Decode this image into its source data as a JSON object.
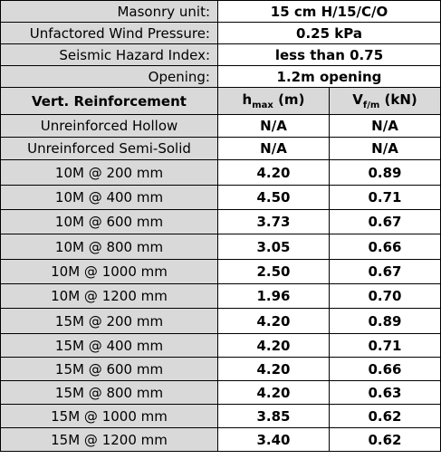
{
  "info_rows": [
    {
      "label": "Masonry unit:",
      "value": "15 cm H/15/C/O"
    },
    {
      "label": "Unfactored Wind Pressure:",
      "value": "0.25 kPa"
    },
    {
      "label": "Seismic Hazard Index:",
      "value": "less than 0.75"
    },
    {
      "label": "Opening:",
      "value": "1.2m opening"
    }
  ],
  "header": {
    "col1": "Vert. Reinforcement",
    "col2_main": "h",
    "col2_sub": "max",
    "col2_unit": " (m)",
    "col3_main": "V",
    "col3_sub": "f/m",
    "col3_unit": " (kN)"
  },
  "unreinforced_rows": [
    {
      "label": "Unreinforced Hollow",
      "hmax": "N/A",
      "vfm": "N/A"
    },
    {
      "label": "Unreinforced Semi-Solid",
      "hmax": "N/A",
      "vfm": "N/A"
    }
  ],
  "group_10m": [
    {
      "label": "10M @ 200 mm",
      "hmax": "4.20",
      "vfm": "0.89"
    },
    {
      "label": "10M @ 400 mm",
      "hmax": "4.50",
      "vfm": "0.71"
    },
    {
      "label": "10M @ 600 mm",
      "hmax": "3.73",
      "vfm": "0.67"
    },
    {
      "label": "10M @ 800 mm",
      "hmax": "3.05",
      "vfm": "0.66"
    },
    {
      "label": "10M @ 1000 mm",
      "hmax": "2.50",
      "vfm": "0.67"
    },
    {
      "label": "10M @ 1200 mm",
      "hmax": "1.96",
      "vfm": "0.70"
    }
  ],
  "group_15m": [
    {
      "label": "15M @ 200 mm",
      "hmax": "4.20",
      "vfm": "0.89"
    },
    {
      "label": "15M @ 400 mm",
      "hmax": "4.20",
      "vfm": "0.71"
    },
    {
      "label": "15M @ 600 mm",
      "hmax": "4.20",
      "vfm": "0.66"
    },
    {
      "label": "15M @ 800 mm",
      "hmax": "4.20",
      "vfm": "0.63"
    },
    {
      "label": "15M @ 1000 mm",
      "hmax": "3.85",
      "vfm": "0.62"
    },
    {
      "label": "15M @ 1200 mm",
      "hmax": "3.40",
      "vfm": "0.62"
    }
  ]
}
